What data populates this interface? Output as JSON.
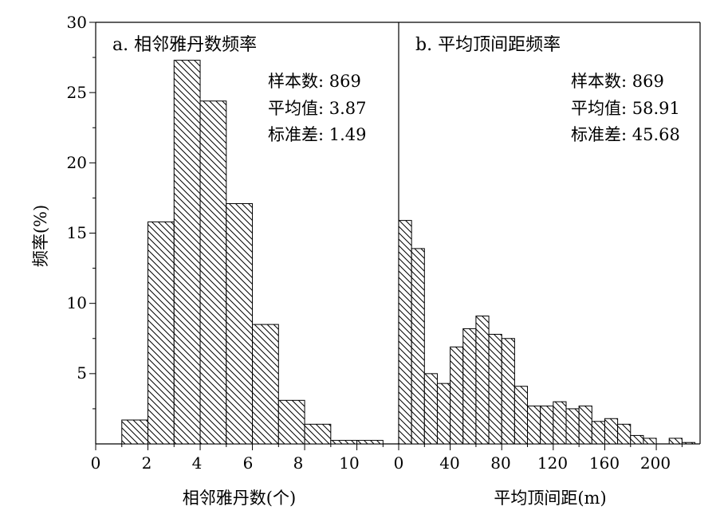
{
  "chart_data": [
    {
      "type": "bar",
      "title": "a. 相邻雅丹数频率",
      "xlabel": "相邻雅丹数(个)",
      "ylabel": "频率(%)",
      "xlim": [
        0,
        11.6
      ],
      "ylim": [
        0,
        30
      ],
      "xticks": [
        0,
        2,
        4,
        6,
        8,
        10
      ],
      "yticks": [
        5,
        10,
        15,
        20,
        25,
        30
      ],
      "bin_width": 1,
      "bins_left": [
        1,
        2,
        3,
        4,
        5,
        6,
        7,
        8,
        9,
        10
      ],
      "values": [
        1.7,
        15.8,
        27.3,
        24.4,
        17.1,
        8.5,
        3.1,
        1.4,
        0.25,
        0.25
      ],
      "stats": [
        "样本数: 869",
        "平均值: 3.87",
        "标准差: 1.49"
      ],
      "grid": false
    },
    {
      "type": "bar",
      "title": "b. 平均顶间距频率",
      "xlabel": "平均顶间距(m)",
      "ylabel": "",
      "xlim": [
        0,
        234
      ],
      "ylim": [
        0,
        30
      ],
      "xticks": [
        0,
        40,
        80,
        120,
        160,
        200
      ],
      "bin_width": 10,
      "bins_left": [
        0,
        10,
        20,
        30,
        40,
        50,
        60,
        70,
        80,
        90,
        100,
        110,
        120,
        130,
        140,
        150,
        160,
        170,
        180,
        190,
        200,
        210,
        220
      ],
      "values": [
        15.9,
        13.9,
        5.0,
        4.3,
        6.9,
        8.2,
        9.1,
        7.8,
        7.5,
        4.1,
        2.7,
        2.7,
        3.0,
        2.5,
        2.7,
        1.6,
        1.8,
        1.4,
        0.6,
        0.4,
        0.0,
        0.4,
        0.1
      ],
      "stats": [
        "样本数: 869",
        "平均值: 58.91",
        "标准差: 45.68"
      ],
      "grid": false
    }
  ],
  "y_tick_labels": [
    "5",
    "10",
    "15",
    "20",
    "25",
    "30"
  ]
}
